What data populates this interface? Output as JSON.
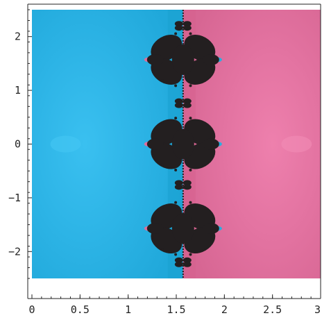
{
  "chart_data": {
    "type": "heatmap",
    "title": "",
    "xlabel": "",
    "ylabel": "",
    "xlim": [
      0,
      3
    ],
    "ylim": [
      -2.5,
      2.5
    ],
    "x_ticks": [
      0,
      0.5,
      1,
      1.5,
      2,
      2.5,
      3
    ],
    "x_tick_labels": [
      "0",
      "0.5",
      "1",
      "1.5",
      "2",
      "2.5",
      "3"
    ],
    "y_ticks": [
      -2,
      -1,
      0,
      1,
      2
    ],
    "y_tick_labels": [
      "−2",
      "−1",
      "0",
      "1",
      "2"
    ],
    "grid": false,
    "legend": "none",
    "description_regions": {
      "boundary_x": 1.5708,
      "left_region_color": "#29b4e6",
      "right_region_color": "#e0709f",
      "fractal_color": "#231f20"
    },
    "fractal_centers_y": [
      -1.57,
      0,
      1.57
    ],
    "small_features_y": [
      -2.2,
      -0.76,
      0.76,
      2.2
    ]
  },
  "colors": {
    "cyan_light": "#35b8ea",
    "cyan_mid": "#27aedf",
    "cyan_dark": "#1aa0d0",
    "pink_light": "#e97aa8",
    "pink_mid": "#df6d9b",
    "pink_dark": "#d55f8e",
    "black": "#231f20",
    "axis": "#222222"
  }
}
